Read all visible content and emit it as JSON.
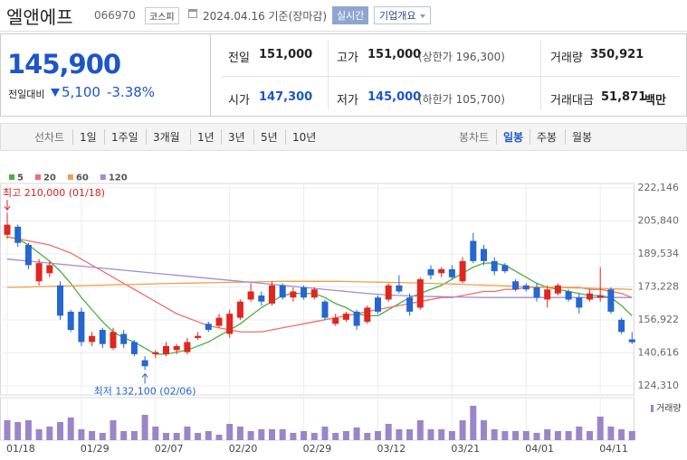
{
  "header": {
    "name": "엘앤에프",
    "code": "066970",
    "market": "코스피",
    "date": "2024.04.16 기준(장마감)",
    "realtime": "실시간",
    "company": "기업개요"
  },
  "quote": {
    "price": "145,900",
    "change_label": "전일대비",
    "change": "5,100",
    "change_pct": "-3.38%",
    "fields": [
      {
        "label": "전일",
        "value": "151,000"
      },
      {
        "label": "고가",
        "value": "151,000",
        "note": "(상한가 196,300)"
      },
      {
        "label": "거래량",
        "value": "350,921"
      },
      {
        "label": "시가",
        "value": "147,300"
      },
      {
        "label": "저가",
        "value": "145,000",
        "note": "(하한가 105,700)"
      },
      {
        "label": "거래대금",
        "value": "51,871",
        "unit": "백만"
      }
    ]
  },
  "toolbar": {
    "line": "선차트",
    "periods": [
      "1일",
      "1주일",
      "3개월",
      "1년",
      "3년",
      "5년",
      "10년"
    ],
    "candle": "봉차트",
    "candle_periods": [
      "일봉",
      "주봉",
      "월봉"
    ]
  },
  "chart_data": {
    "type": "candlestick",
    "categories": [
      "01/18",
      null,
      null,
      null,
      null,
      null,
      null,
      "01/29",
      null,
      null,
      null,
      null,
      null,
      null,
      "02/07",
      null,
      null,
      null,
      null,
      null,
      null,
      "02/20",
      null,
      null,
      null,
      null,
      null,
      null,
      "02/29",
      null,
      null,
      null,
      null,
      null,
      null,
      "03/12",
      null,
      null,
      null,
      null,
      null,
      null,
      "03/21",
      null,
      null,
      null,
      null,
      null,
      null,
      "04/01",
      null,
      null,
      null,
      null,
      null,
      null,
      "04/11",
      null,
      null,
      null
    ],
    "open": [
      199000,
      203000,
      194000,
      176000,
      180000,
      174000,
      161000,
      161000,
      146000,
      152000,
      143000,
      150000,
      146000,
      137000,
      140000,
      140000,
      142000,
      141000,
      148000,
      155000,
      154000,
      150000,
      158000,
      167000,
      169000,
      165000,
      174000,
      168000,
      173000,
      168000,
      166000,
      155000,
      157000,
      161000,
      156000,
      168000,
      167000,
      174000,
      168000,
      163000,
      182000,
      180000,
      182000,
      176000,
      196000,
      192000,
      186000,
      184000,
      176000,
      174000,
      173000,
      167000,
      170000,
      171000,
      168000,
      167000,
      168000,
      172000,
      157000,
      147300
    ],
    "high": [
      210000,
      204000,
      195000,
      187000,
      186000,
      176000,
      162000,
      163000,
      151000,
      153000,
      153000,
      152000,
      147000,
      139000,
      142000,
      146000,
      145000,
      148000,
      151000,
      156000,
      160000,
      162000,
      167000,
      175000,
      171000,
      176000,
      175000,
      173000,
      174000,
      173000,
      167000,
      160000,
      161000,
      162000,
      164000,
      169000,
      175000,
      179000,
      170000,
      178000,
      184000,
      183000,
      184000,
      188000,
      200000,
      194000,
      188000,
      185000,
      177000,
      175000,
      175000,
      174000,
      175000,
      172000,
      170000,
      172000,
      183000,
      173000,
      158000,
      151000
    ],
    "low": [
      197000,
      193000,
      182000,
      174000,
      178000,
      157000,
      151000,
      144000,
      144000,
      143000,
      142000,
      143000,
      139000,
      132100,
      138000,
      139000,
      140000,
      140000,
      147000,
      151000,
      153000,
      148000,
      157000,
      166000,
      164000,
      164000,
      167000,
      166000,
      167000,
      167000,
      157000,
      154000,
      156000,
      152000,
      155000,
      160000,
      166000,
      170000,
      159000,
      162000,
      177000,
      178000,
      177000,
      175000,
      185000,
      184000,
      179000,
      180000,
      171000,
      171000,
      166000,
      163000,
      169000,
      166000,
      160000,
      166000,
      166000,
      160000,
      150000,
      145000
    ],
    "close": [
      204000,
      195000,
      184000,
      185000,
      184000,
      159000,
      152000,
      146000,
      149000,
      145000,
      151000,
      145000,
      140000,
      134000,
      141000,
      144000,
      144000,
      146000,
      149000,
      152000,
      158000,
      160000,
      166000,
      171000,
      166000,
      174000,
      168000,
      171000,
      168000,
      172000,
      158000,
      158000,
      160000,
      154000,
      163000,
      161000,
      174000,
      171000,
      161000,
      177000,
      179000,
      182000,
      178000,
      186000,
      186000,
      186000,
      181000,
      181000,
      172000,
      172000,
      168000,
      172000,
      174000,
      167000,
      163000,
      170000,
      169000,
      161000,
      151000,
      145900
    ],
    "up_color": "#e0261f",
    "down_color": "#2566d0",
    "series": [
      {
        "name": "5",
        "color": "#4caf3c",
        "values": [
          198000,
          197000,
          194000,
          190000,
          186000,
          181000,
          175000,
          168000,
          162000,
          156000,
          151000,
          148000,
          146000,
          143000,
          140000,
          140000,
          141000,
          142000,
          144000,
          146000,
          149000,
          152000,
          155000,
          159000,
          163000,
          166000,
          169000,
          170000,
          170000,
          170000,
          168000,
          165000,
          163000,
          160000,
          159000,
          159000,
          162000,
          165000,
          168000,
          170000,
          172000,
          174000,
          177000,
          180000,
          183000,
          185000,
          185000,
          184000,
          181000,
          178000,
          175000,
          173000,
          172000,
          171000,
          170000,
          169000,
          169000,
          168000,
          164000,
          159000
        ]
      },
      {
        "name": "20",
        "color": "#ef6f6a",
        "values": [
          198000,
          197000,
          196000,
          195000,
          194000,
          192000,
          190000,
          187000,
          184000,
          181000,
          178000,
          175000,
          172000,
          169000,
          166000,
          163000,
          160000,
          158000,
          156000,
          154000,
          153000,
          152000,
          151000,
          151000,
          151000,
          152000,
          153000,
          154000,
          155000,
          156000,
          157000,
          158000,
          159000,
          160000,
          161000,
          162000,
          163000,
          164000,
          165000,
          166000,
          167000,
          168000,
          168000,
          169000,
          170000,
          171000,
          171000,
          172000,
          172000,
          173000,
          173000,
          173000,
          173000,
          173000,
          173000,
          172000,
          172000,
          171000,
          170000,
          168000
        ]
      },
      {
        "name": "60",
        "color": "#f0a04b",
        "values": [
          173000,
          173100,
          173200,
          173400,
          173500,
          173600,
          173800,
          173900,
          174000,
          174100,
          174300,
          174400,
          174500,
          174600,
          174800,
          174900,
          175000,
          175100,
          175200,
          175300,
          175400,
          175500,
          175600,
          175700,
          175800,
          175900,
          176000,
          176000,
          176000,
          176000,
          176000,
          176000,
          175900,
          175800,
          175700,
          175600,
          175500,
          175400,
          175300,
          175100,
          175000,
          174800,
          174700,
          174500,
          174300,
          174100,
          174000,
          173800,
          173600,
          173400,
          173200,
          173100,
          173000,
          172800,
          172700,
          172600,
          172400,
          172300,
          172200,
          172000
        ]
      },
      {
        "name": "120",
        "color": "#a18bd3",
        "values": [
          187000,
          186500,
          186000,
          185500,
          185000,
          184500,
          184000,
          183500,
          183000,
          182500,
          182000,
          181500,
          181000,
          180500,
          180000,
          179500,
          179000,
          178500,
          178000,
          177500,
          177000,
          176500,
          176000,
          175500,
          175000,
          174500,
          174000,
          173500,
          173000,
          172500,
          172000,
          171500,
          171000,
          170500,
          170000,
          169600,
          169300,
          169000,
          168800,
          168600,
          168500,
          168400,
          168300,
          168200,
          168100,
          168000,
          168000,
          168000,
          168000,
          168000,
          168000,
          168000,
          168000,
          168000,
          168000,
          168000,
          168000,
          168000,
          168000,
          168000
        ]
      }
    ],
    "volume": {
      "name": "거래량",
      "color": "#9b85c9",
      "ylim": [
        0,
        1500000
      ],
      "values": [
        767000,
        698000,
        767000,
        419000,
        523000,
        698000,
        872000,
        419000,
        349000,
        279000,
        767000,
        349000,
        349000,
        977000,
        523000,
        279000,
        279000,
        523000,
        279000,
        349000,
        209000,
        628000,
        523000,
        349000,
        419000,
        419000,
        419000,
        279000,
        349000,
        279000,
        523000,
        279000,
        349000,
        488000,
        279000,
        349000,
        628000,
        419000,
        419000,
        767000,
        419000,
        419000,
        349000,
        767000,
        1326000,
        767000,
        419000,
        349000,
        349000,
        349000,
        279000,
        419000,
        349000,
        349000,
        523000,
        349000,
        907000,
        523000,
        419000,
        350921
      ]
    },
    "ylim": [
      124310,
      222146
    ],
    "yticks": [
      {
        "value": 124310,
        "label": "124,310"
      },
      {
        "value": 140616,
        "label": "140,616"
      },
      {
        "value": 156922,
        "label": "156,922"
      },
      {
        "value": 173228,
        "label": "173,228"
      },
      {
        "value": 189534,
        "label": "189,534"
      },
      {
        "value": 205840,
        "label": "205,840"
      },
      {
        "value": 222146,
        "label": "222,146"
      }
    ],
    "grid": true,
    "annotations": {
      "high": "최고 210,000 (01/18)",
      "low": "최저 132,100 (02/06)"
    }
  }
}
